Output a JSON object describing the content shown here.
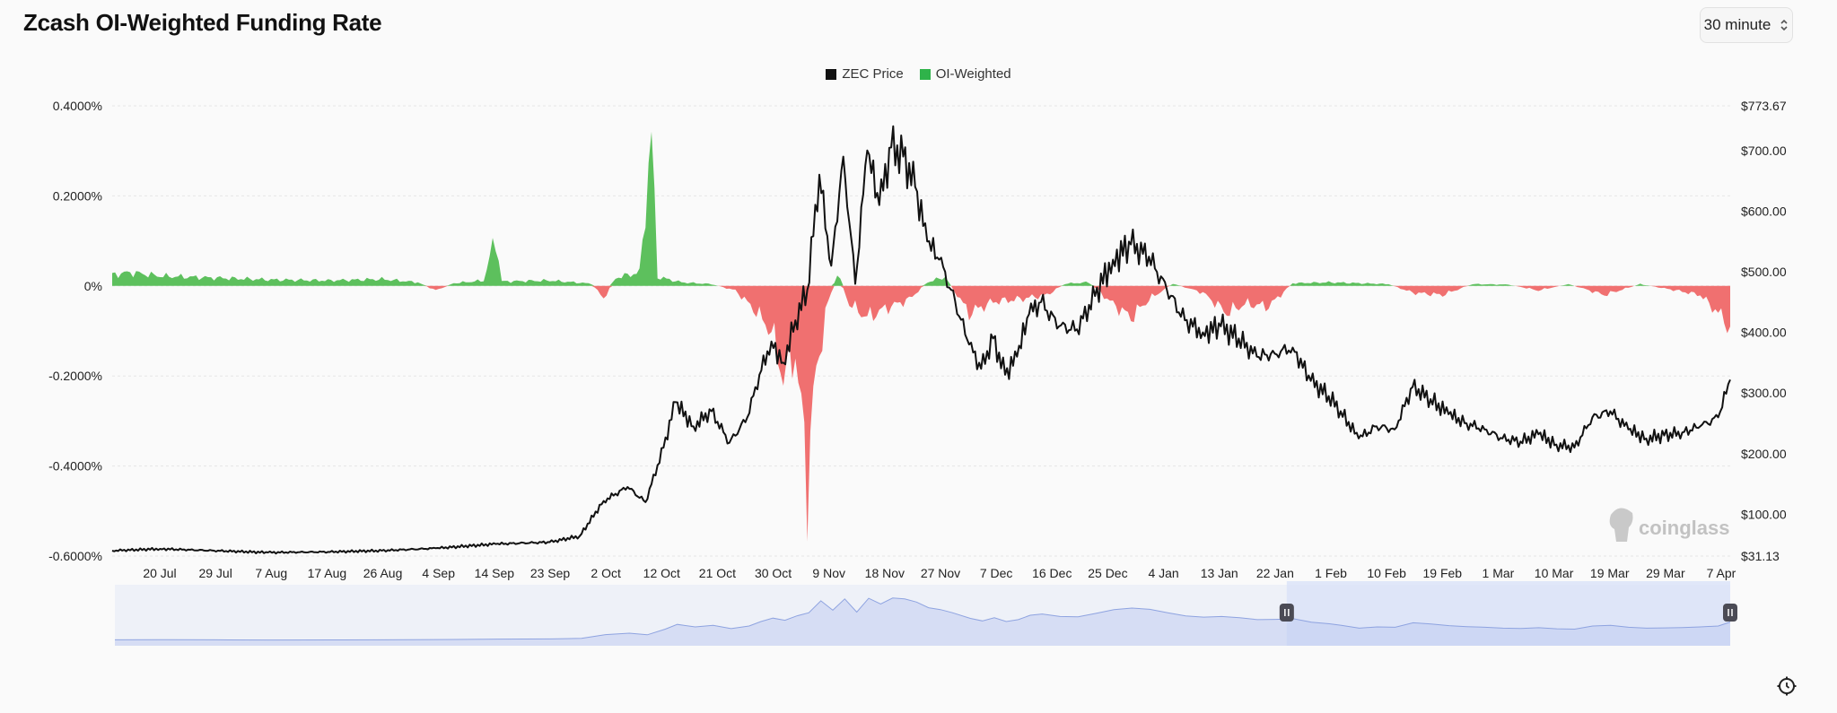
{
  "title": "Zcash OI-Weighted Funding Rate",
  "interval": {
    "label": "30 minute",
    "icon": "chevron-updown-icon"
  },
  "watermark": "coinglass",
  "settings_icon": "settings-icon",
  "colors": {
    "price": "#111111",
    "positive": "#5dc05d",
    "negative": "#f07070",
    "grid": "#e6e6e6",
    "navigator": "#b9c6ef",
    "navigator_bg": "#dbe3f8"
  },
  "chart_data": {
    "type": "area",
    "legend": [
      {
        "name": "ZEC Price",
        "color": "#111111"
      },
      {
        "name": "OI-Weighted",
        "color": "#2fb34a"
      }
    ],
    "legend_position": "top-center",
    "grid": true,
    "x_range": [
      "2025-07-12",
      "2026-04-08"
    ],
    "x_ticks": [
      "20 Jul",
      "29 Jul",
      "7 Aug",
      "17 Aug",
      "26 Aug",
      "4 Sep",
      "14 Sep",
      "23 Sep",
      "2 Oct",
      "12 Oct",
      "21 Oct",
      "30 Oct",
      "9 Nov",
      "18 Nov",
      "27 Nov",
      "7 Dec",
      "16 Dec",
      "25 Dec",
      "4 Jan",
      "13 Jan",
      "22 Jan",
      "1 Feb",
      "10 Feb",
      "19 Feb",
      "1 Mar",
      "10 Mar",
      "19 Mar",
      "29 Mar",
      "7 Apr"
    ],
    "y_left": {
      "ticks": [
        "0.4000%",
        "0.2000%",
        "0%",
        "-0.2000%",
        "-0.4000%",
        "-0.6000%"
      ],
      "range": [
        -0.6,
        0.4
      ],
      "unit": "%"
    },
    "y_right": {
      "ticks": [
        "$773.67",
        "$700.00",
        "$600.00",
        "$500.00",
        "$400.00",
        "$300.00",
        "$200.00",
        "$100.00",
        "$31.13"
      ],
      "range": [
        31.13,
        773.67
      ]
    },
    "series": [
      {
        "name": "ZEC Price",
        "axis": "right",
        "points": [
          [
            "2025-07-12",
            40
          ],
          [
            "2025-07-20",
            43
          ],
          [
            "2025-07-29",
            40
          ],
          [
            "2025-08-07",
            37
          ],
          [
            "2025-08-17",
            38
          ],
          [
            "2025-08-26",
            40
          ],
          [
            "2025-09-04",
            44
          ],
          [
            "2025-09-14",
            51
          ],
          [
            "2025-09-23",
            54
          ],
          [
            "2025-09-28",
            64
          ],
          [
            "2025-10-02",
            122
          ],
          [
            "2025-10-06",
            145
          ],
          [
            "2025-10-09",
            120
          ],
          [
            "2025-10-12",
            210
          ],
          [
            "2025-10-14",
            285
          ],
          [
            "2025-10-17",
            245
          ],
          [
            "2025-10-20",
            270
          ],
          [
            "2025-10-23",
            218
          ],
          [
            "2025-10-26",
            260
          ],
          [
            "2025-10-28",
            330
          ],
          [
            "2025-10-30",
            385
          ],
          [
            "2025-11-01",
            350
          ],
          [
            "2025-11-03",
            420
          ],
          [
            "2025-11-05",
            470
          ],
          [
            "2025-11-07",
            660
          ],
          [
            "2025-11-09",
            510
          ],
          [
            "2025-11-11",
            690
          ],
          [
            "2025-11-13",
            480
          ],
          [
            "2025-11-15",
            700
          ],
          [
            "2025-11-17",
            610
          ],
          [
            "2025-11-19",
            705
          ],
          [
            "2025-11-21",
            690
          ],
          [
            "2025-11-23",
            640
          ],
          [
            "2025-11-25",
            550
          ],
          [
            "2025-11-27",
            520
          ],
          [
            "2025-11-29",
            470
          ],
          [
            "2025-12-02",
            380
          ],
          [
            "2025-12-04",
            340
          ],
          [
            "2025-12-06",
            390
          ],
          [
            "2025-12-08",
            330
          ],
          [
            "2025-12-10",
            360
          ],
          [
            "2025-12-12",
            430
          ],
          [
            "2025-12-14",
            450
          ],
          [
            "2025-12-17",
            410
          ],
          [
            "2025-12-20",
            405
          ],
          [
            "2025-12-23",
            460
          ],
          [
            "2025-12-26",
            520
          ],
          [
            "2025-12-29",
            545
          ],
          [
            "2026-01-01",
            525
          ],
          [
            "2026-01-04",
            470
          ],
          [
            "2026-01-07",
            420
          ],
          [
            "2026-01-10",
            400
          ],
          [
            "2026-01-13",
            410
          ],
          [
            "2026-01-16",
            390
          ],
          [
            "2026-01-19",
            360
          ],
          [
            "2026-01-22",
            365
          ],
          [
            "2026-01-25",
            375
          ],
          [
            "2026-01-28",
            320
          ],
          [
            "2026-01-31",
            295
          ],
          [
            "2026-02-02",
            270
          ],
          [
            "2026-02-05",
            225
          ],
          [
            "2026-02-08",
            245
          ],
          [
            "2026-02-11",
            240
          ],
          [
            "2026-02-14",
            310
          ],
          [
            "2026-02-17",
            290
          ],
          [
            "2026-02-20",
            265
          ],
          [
            "2026-02-23",
            250
          ],
          [
            "2026-02-26",
            240
          ],
          [
            "2026-03-01",
            225
          ],
          [
            "2026-03-04",
            220
          ],
          [
            "2026-03-07",
            232
          ],
          [
            "2026-03-10",
            215
          ],
          [
            "2026-03-13",
            210
          ],
          [
            "2026-03-16",
            260
          ],
          [
            "2026-03-19",
            270
          ],
          [
            "2026-03-22",
            240
          ],
          [
            "2026-03-25",
            225
          ],
          [
            "2026-03-28",
            230
          ],
          [
            "2026-03-31",
            235
          ],
          [
            "2026-04-03",
            245
          ],
          [
            "2026-04-06",
            260
          ],
          [
            "2026-04-08",
            322
          ]
        ]
      },
      {
        "name": "OI-Weighted",
        "axis": "left",
        "unit": "%",
        "points": [
          [
            "2025-07-12",
            0.025
          ],
          [
            "2025-07-15",
            0.03
          ],
          [
            "2025-07-20",
            0.022
          ],
          [
            "2025-07-29",
            0.018
          ],
          [
            "2025-08-07",
            0.014
          ],
          [
            "2025-08-17",
            0.012
          ],
          [
            "2025-08-26",
            0.015
          ],
          [
            "2025-09-01",
            0.008
          ],
          [
            "2025-09-04",
            -0.01
          ],
          [
            "2025-09-07",
            0.006
          ],
          [
            "2025-09-12",
            0.012
          ],
          [
            "2025-09-14",
            0.11
          ],
          [
            "2025-09-15",
            0.01
          ],
          [
            "2025-09-23",
            0.012
          ],
          [
            "2025-09-30",
            0.005
          ],
          [
            "2025-10-02",
            -0.028
          ],
          [
            "2025-10-04",
            0.018
          ],
          [
            "2025-10-08",
            0.03
          ],
          [
            "2025-10-10",
            0.33
          ],
          [
            "2025-10-11",
            0.02
          ],
          [
            "2025-10-15",
            0.008
          ],
          [
            "2025-10-20",
            0.004
          ],
          [
            "2025-10-24",
            -0.01
          ],
          [
            "2025-10-27",
            -0.05
          ],
          [
            "2025-10-30",
            -0.1
          ],
          [
            "2025-11-01",
            -0.2
          ],
          [
            "2025-11-03",
            -0.15
          ],
          [
            "2025-11-05",
            -0.42
          ],
          [
            "2025-11-06",
            -0.25
          ],
          [
            "2025-11-08",
            -0.06
          ],
          [
            "2025-11-10",
            0.03
          ],
          [
            "2025-11-12",
            -0.04
          ],
          [
            "2025-11-15",
            -0.07
          ],
          [
            "2025-11-18",
            -0.05
          ],
          [
            "2025-11-22",
            -0.03
          ],
          [
            "2025-11-25",
            0.008
          ],
          [
            "2025-11-28",
            0.02
          ],
          [
            "2025-12-02",
            -0.06
          ],
          [
            "2025-12-06",
            -0.035
          ],
          [
            "2025-12-10",
            -0.03
          ],
          [
            "2025-12-15",
            -0.02
          ],
          [
            "2025-12-18",
            0.005
          ],
          [
            "2025-12-22",
            0.008
          ],
          [
            "2025-12-26",
            -0.04
          ],
          [
            "2025-12-29",
            -0.07
          ],
          [
            "2026-01-01",
            -0.03
          ],
          [
            "2026-01-05",
            0.005
          ],
          [
            "2026-01-10",
            -0.015
          ],
          [
            "2026-01-14",
            -0.06
          ],
          [
            "2026-01-17",
            -0.04
          ],
          [
            "2026-01-21",
            -0.045
          ],
          [
            "2026-01-25",
            0.006
          ],
          [
            "2026-01-31",
            0.008
          ],
          [
            "2026-02-05",
            0.006
          ],
          [
            "2026-02-10",
            0.004
          ],
          [
            "2026-02-14",
            -0.015
          ],
          [
            "2026-02-19",
            -0.02
          ],
          [
            "2026-02-24",
            0.004
          ],
          [
            "2026-03-02",
            0.003
          ],
          [
            "2026-03-07",
            -0.01
          ],
          [
            "2026-03-12",
            0.004
          ],
          [
            "2026-03-18",
            -0.02
          ],
          [
            "2026-03-24",
            0.004
          ],
          [
            "2026-03-30",
            -0.01
          ],
          [
            "2026-04-03",
            -0.02
          ],
          [
            "2026-04-06",
            -0.06
          ],
          [
            "2026-04-08",
            -0.09
          ]
        ]
      }
    ],
    "navigator": {
      "selected_range": [
        "2026-01-24",
        "2026-04-08"
      ]
    }
  }
}
